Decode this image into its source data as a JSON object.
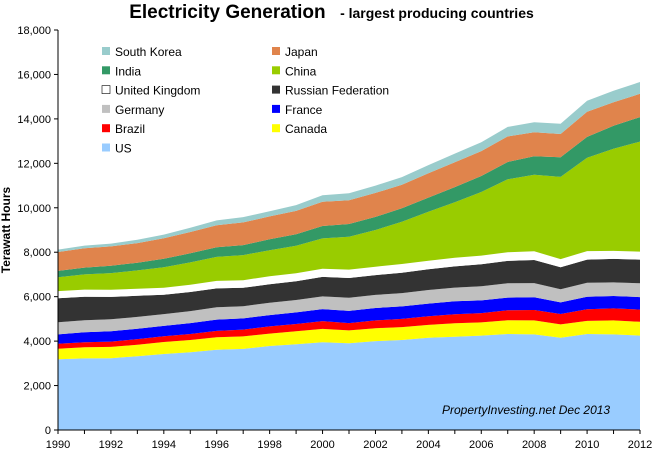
{
  "title": "Electricity  Generation",
  "subtitle": "- largest producing countries",
  "chart_data": {
    "type": "area",
    "stacked": true,
    "ylabel": "Terawatt Hours",
    "xlabel": "",
    "ylim": [
      0,
      18000
    ],
    "y_ticks": [
      "0",
      "2,000",
      "4,000",
      "6,000",
      "8,000",
      "10,000",
      "12,000",
      "14,000",
      "16,000",
      "18,000"
    ],
    "x_ticks": [
      "1990",
      "1992",
      "1994",
      "1996",
      "1998",
      "2000",
      "2002",
      "2004",
      "2006",
      "2008",
      "2010",
      "2012"
    ],
    "x": [
      1990,
      1991,
      1992,
      1993,
      1994,
      1995,
      1996,
      1997,
      1998,
      1999,
      2000,
      2001,
      2002,
      2003,
      2004,
      2005,
      2006,
      2007,
      2008,
      2009,
      2010,
      2011,
      2012
    ],
    "grid": false,
    "legend_position": "top-left",
    "annotation": "PropertyInvesting.net  Dec 2013",
    "series": [
      {
        "name": "US",
        "color": "#99ccff",
        "values": [
          3180,
          3220,
          3230,
          3320,
          3420,
          3500,
          3610,
          3650,
          3780,
          3860,
          3950,
          3900,
          4000,
          4050,
          4150,
          4200,
          4250,
          4320,
          4300,
          4150,
          4320,
          4300,
          4250
        ]
      },
      {
        "name": "Canada",
        "color": "#ffff00",
        "values": [
          480,
          500,
          510,
          520,
          540,
          550,
          560,
          560,
          560,
          580,
          600,
          580,
          580,
          580,
          580,
          600,
          590,
          620,
          630,
          600,
          590,
          630,
          620
        ]
      },
      {
        "name": "Brazil",
        "color": "#ff0000",
        "values": [
          220,
          230,
          240,
          250,
          255,
          270,
          290,
          310,
          320,
          330,
          350,
          330,
          350,
          370,
          390,
          410,
          420,
          450,
          470,
          470,
          520,
          540,
          550
        ]
      },
      {
        "name": "France",
        "color": "#0000ff",
        "values": [
          420,
          450,
          460,
          470,
          470,
          490,
          510,
          500,
          510,
          520,
          540,
          550,
          560,
          560,
          570,
          580,
          570,
          570,
          570,
          520,
          570,
          560,
          560
        ]
      },
      {
        "name": "Germany",
        "color": "#c0c0c0",
        "values": [
          550,
          540,
          540,
          530,
          530,
          540,
          550,
          550,
          560,
          560,
          570,
          590,
          590,
          600,
          610,
          620,
          640,
          640,
          640,
          590,
          630,
          610,
          620
        ]
      },
      {
        "name": "Russian Federation",
        "color": "#333333",
        "values": [
          1080,
          1060,
          1010,
          950,
          870,
          860,
          850,
          830,
          830,
          840,
          880,
          890,
          890,
          920,
          930,
          950,
          990,
          1010,
          1040,
          990,
          1040,
          1060,
          1070
        ]
      },
      {
        "name": "United Kingdom",
        "color": "#ffffff",
        "values": [
          320,
          320,
          320,
          320,
          320,
          330,
          340,
          340,
          360,
          360,
          370,
          380,
          380,
          390,
          390,
          390,
          390,
          390,
          390,
          370,
          380,
          360,
          360
        ]
      },
      {
        "name": "China",
        "color": "#99cc00",
        "values": [
          620,
          680,
          750,
          820,
          920,
          1000,
          1080,
          1130,
          1170,
          1240,
          1360,
          1480,
          1650,
          1900,
          2200,
          2500,
          2860,
          3280,
          3450,
          3700,
          4200,
          4600,
          4950
        ]
      },
      {
        "name": "India",
        "color": "#339966",
        "values": [
          290,
          310,
          330,
          350,
          380,
          410,
          430,
          450,
          490,
          520,
          560,
          570,
          590,
          610,
          640,
          680,
          720,
          780,
          830,
          880,
          940,
          1030,
          1100
        ]
      },
      {
        "name": "Japan",
        "color": "#e0844c",
        "values": [
          850,
          870,
          870,
          880,
          920,
          960,
          990,
          1020,
          1030,
          1050,
          1090,
          1070,
          1080,
          1060,
          1090,
          1120,
          1120,
          1150,
          1080,
          1050,
          1130,
          1060,
          1050
        ]
      },
      {
        "name": "South Korea",
        "color": "#99cccc",
        "values": [
          110,
          120,
          130,
          150,
          170,
          190,
          220,
          240,
          230,
          260,
          290,
          310,
          330,
          340,
          370,
          390,
          400,
          430,
          450,
          460,
          500,
          520,
          530
        ]
      }
    ],
    "legend_order": [
      "South Korea",
      "Japan",
      "India",
      "China",
      "United Kingdom",
      "Russian Federation",
      "Germany",
      "France",
      "Brazil",
      "Canada",
      "US"
    ]
  }
}
